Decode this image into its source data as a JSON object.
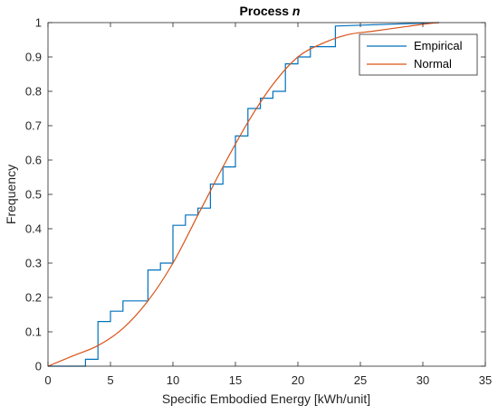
{
  "chart_data": {
    "type": "line",
    "title": "Process",
    "title_var": "n",
    "xlabel": "Specific Embodied Energy [kWh/unit]",
    "ylabel": "Frequency",
    "xlim": [
      0,
      35
    ],
    "ylim": [
      0,
      1
    ],
    "x_ticks": [
      0,
      5,
      10,
      15,
      20,
      25,
      30,
      35
    ],
    "y_ticks": [
      0,
      0.1,
      0.2,
      0.3,
      0.4,
      0.5,
      0.6,
      0.7,
      0.8,
      0.9,
      1
    ],
    "grid": false,
    "legend_position": "top-right",
    "colors": {
      "empirical": "#0072BD",
      "normal": "#D95319",
      "axis": "#262626"
    },
    "series": [
      {
        "name": "Empirical",
        "style": "step",
        "x": [
          0,
          3,
          3,
          4,
          4,
          5,
          5,
          6,
          6,
          8,
          8,
          9,
          9,
          10,
          10,
          11,
          11,
          12,
          12,
          13,
          13,
          14,
          14,
          15,
          15,
          16,
          16,
          17,
          17,
          18,
          18,
          19,
          19,
          20,
          20,
          21,
          21,
          23,
          23,
          31.3
        ],
        "y": [
          0,
          0,
          0.02,
          0.02,
          0.13,
          0.13,
          0.16,
          0.16,
          0.19,
          0.19,
          0.28,
          0.28,
          0.3,
          0.3,
          0.41,
          0.41,
          0.44,
          0.44,
          0.46,
          0.46,
          0.53,
          0.53,
          0.58,
          0.58,
          0.67,
          0.67,
          0.75,
          0.75,
          0.78,
          0.78,
          0.8,
          0.8,
          0.88,
          0.88,
          0.9,
          0.9,
          0.93,
          0.93,
          0.99,
          1.0
        ]
      },
      {
        "name": "Normal",
        "style": "smooth",
        "x": [
          0,
          2,
          4,
          6,
          8,
          10,
          12,
          13,
          14,
          16,
          18,
          20,
          22,
          24,
          26,
          28,
          30,
          31.3
        ],
        "y": [
          0,
          0.03,
          0.06,
          0.11,
          0.19,
          0.3,
          0.44,
          0.51,
          0.58,
          0.71,
          0.82,
          0.9,
          0.94,
          0.965,
          0.975,
          0.985,
          0.995,
          1.0
        ]
      }
    ]
  }
}
